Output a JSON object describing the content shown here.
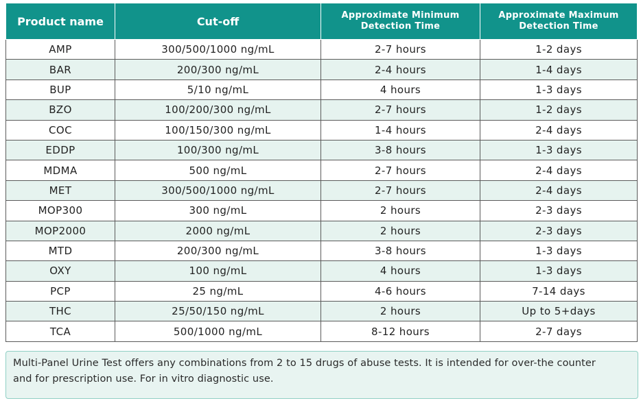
{
  "table": {
    "headers": [
      [
        "Product name"
      ],
      [
        "Cut-off"
      ],
      [
        "Approximate Minimum",
        "Detection Time"
      ],
      [
        "Approximate Maximum",
        "Detection Time"
      ]
    ],
    "rows": [
      [
        "AMP",
        "300/500/1000 ng/mL",
        "2-7 hours",
        "1-2 days"
      ],
      [
        "BAR",
        "200/300 ng/mL",
        "2-4 hours",
        "1-4 days"
      ],
      [
        "BUP",
        "5/10 ng/mL",
        "4 hours",
        "1-3 days"
      ],
      [
        "BZO",
        "100/200/300 ng/mL",
        "2-7 hours",
        "1-2 days"
      ],
      [
        "COC",
        "100/150/300 ng/mL",
        "1-4 hours",
        "2-4 days"
      ],
      [
        "EDDP",
        "100/300 ng/mL",
        "3-8 hours",
        "1-3 days"
      ],
      [
        "MDMA",
        "500 ng/mL",
        "2-7 hours",
        "2-4 days"
      ],
      [
        "MET",
        "300/500/1000 ng/mL",
        "2-7 hours",
        "2-4 days"
      ],
      [
        "MOP300",
        "300 ng/mL",
        "2 hours",
        "2-3 days"
      ],
      [
        "MOP2000",
        "2000 ng/mL",
        "2 hours",
        "2-3 days"
      ],
      [
        "MTD",
        "200/300 ng/mL",
        "3-8 hours",
        "1-3 days"
      ],
      [
        "OXY",
        "100 ng/mL",
        "4 hours",
        "1-3 days"
      ],
      [
        "PCP",
        "25 ng/mL",
        "4-6 hours",
        "7-14 days"
      ],
      [
        "THC",
        "25/50/150 ng/mL",
        "2 hours",
        "Up to 5+days"
      ],
      [
        "TCA",
        "500/1000 ng/mL",
        "8-12 hours",
        "2-7 days"
      ]
    ]
  },
  "note": {
    "lines": [
      "Multi-Panel Urine Test offers any combinations from 2 to 15 drugs of abuse tests. It is intended for over-the counter",
      "and for prescription use. For in vitro diagnostic use."
    ]
  },
  "colors": {
    "header_bg": "#11938b",
    "shade_row_bg": "#e6f3ef",
    "note_bg": "#e8f4f1",
    "note_border": "#8fcfc4"
  }
}
